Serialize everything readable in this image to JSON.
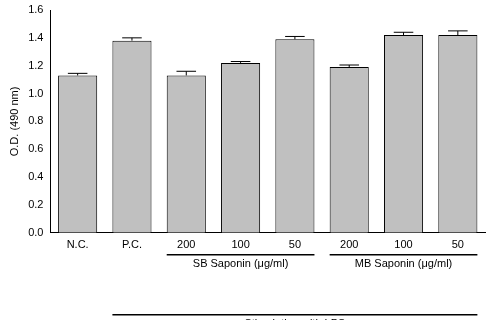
{
  "chart_data": {
    "type": "bar",
    "y_label": "O.D. (490 nm)",
    "categories": [
      "N.C.",
      "P.C.",
      "200",
      "100",
      "50",
      "200",
      "100",
      "50"
    ],
    "values": [
      1.13,
      1.38,
      1.13,
      1.22,
      1.39,
      1.19,
      1.42,
      1.42
    ],
    "errors": [
      0.015,
      0.02,
      0.03,
      0.01,
      0.02,
      0.015,
      0.02,
      0.03
    ],
    "color": "#c0c0c0",
    "ylim": [
      0,
      1.6
    ],
    "yticks": [
      {
        "value": 0,
        "label": "0.0"
      },
      {
        "value": 0.2,
        "label": "0.2"
      },
      {
        "value": 0.4,
        "label": "0.4"
      },
      {
        "value": 0.6,
        "label": "0.6"
      },
      {
        "value": 0.8,
        "label": "0.8"
      },
      {
        "value": 1.0,
        "label": "1.0"
      },
      {
        "value": 1.2,
        "label": "1.2"
      },
      {
        "value": 1.4,
        "label": "1.4"
      },
      {
        "value": 1.6,
        "label": "1.6"
      }
    ],
    "grid": false,
    "annotations": [
      {
        "text": "SB Saponin (μg/ml)",
        "first": 2,
        "last": 4
      },
      {
        "text": "MB Saponin (μg/ml)",
        "first": 5,
        "last": 7
      },
      {
        "text": "Stimulation with LPS",
        "first": 1,
        "last": 7
      }
    ]
  }
}
